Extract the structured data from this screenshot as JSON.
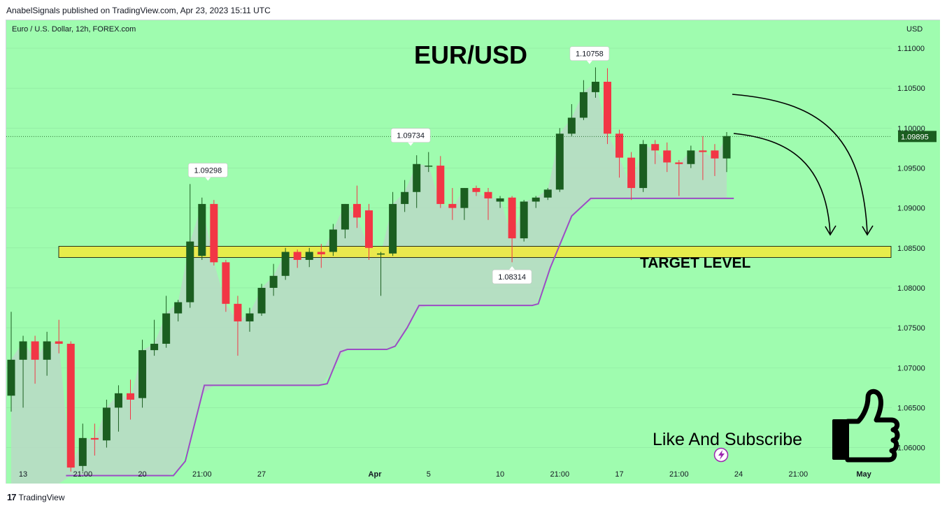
{
  "header": {
    "published": "AnabelSignals published on TradingView.com, Apr 23, 2023 15:11 UTC"
  },
  "footer": {
    "brand": "TradingView",
    "logo_glyph": "17"
  },
  "chart_header": {
    "symbol": "Euro / U.S. Dollar, 12h, FOREX.com",
    "currency": "USD"
  },
  "colors": {
    "background": "#9ffcaf",
    "up": "#1b5e20",
    "down": "#f23645",
    "trail": "#9c4dc4",
    "band": "#f3ea3a",
    "cloud": "#b9d9c6"
  },
  "annotations": {
    "title": "EUR/USD",
    "target_label": "TARGET LEVEL",
    "cta": "Like And Subscribe",
    "thumb_icon": "thumbs-up-icon",
    "flash_icon": "lightning-icon"
  },
  "chart_data": {
    "type": "candlestick",
    "interval": "12h",
    "ylim": [
      1.0555,
      1.1135
    ],
    "y_ticks": [
      "1.11000",
      "1.10500",
      "1.10000",
      "1.09500",
      "1.09000",
      "1.08500",
      "1.08000",
      "1.07500",
      "1.07000",
      "1.06500",
      "1.06000"
    ],
    "y_tick_values": [
      1.11,
      1.105,
      1.1,
      1.095,
      1.09,
      1.085,
      1.08,
      1.075,
      1.07,
      1.065,
      1.06
    ],
    "x_ticks": [
      "13",
      "21:00",
      "20",
      "21:00",
      "27",
      "Apr",
      "5",
      "10",
      "21:00",
      "17",
      "21:00",
      "24",
      "21:00",
      "May"
    ],
    "x_tick_bold": [
      "Apr",
      "May"
    ],
    "x_tick_index": [
      1,
      6,
      11,
      16,
      21,
      30.5,
      35,
      41,
      46,
      51,
      56,
      61,
      66,
      71.5
    ],
    "last_price": "1.09895",
    "last_price_value": 1.09895,
    "target_level": [
      1.0838,
      1.0852
    ],
    "price_labels": [
      {
        "text": "1.09298",
        "index": 16.5,
        "value": 1.09298
      },
      {
        "text": "1.09734",
        "index": 33.5,
        "value": 1.09734
      },
      {
        "text": "1.08314",
        "index": 42,
        "value": 1.08314
      },
      {
        "text": "1.10758",
        "index": 48.5,
        "value": 1.10758
      }
    ],
    "candles": [
      {
        "o": 1.0665,
        "h": 1.077,
        "l": 1.0645,
        "c": 1.071
      },
      {
        "o": 1.071,
        "h": 1.074,
        "l": 1.065,
        "c": 1.0733
      },
      {
        "o": 1.0733,
        "h": 1.074,
        "l": 1.068,
        "c": 1.071
      },
      {
        "o": 1.071,
        "h": 1.0745,
        "l": 1.069,
        "c": 1.0733
      },
      {
        "o": 1.0733,
        "h": 1.076,
        "l": 1.0718,
        "c": 1.073
      },
      {
        "o": 1.073,
        "h": 1.0733,
        "l": 1.057,
        "c": 1.0575
      },
      {
        "o": 1.0577,
        "h": 1.063,
        "l": 1.057,
        "c": 1.0612
      },
      {
        "o": 1.0612,
        "h": 1.063,
        "l": 1.059,
        "c": 1.061
      },
      {
        "o": 1.0609,
        "h": 1.066,
        "l": 1.06,
        "c": 1.065
      },
      {
        "o": 1.065,
        "h": 1.0678,
        "l": 1.062,
        "c": 1.0668
      },
      {
        "o": 1.0668,
        "h": 1.0685,
        "l": 1.0635,
        "c": 1.066
      },
      {
        "o": 1.0662,
        "h": 1.0735,
        "l": 1.065,
        "c": 1.0722
      },
      {
        "o": 1.0722,
        "h": 1.076,
        "l": 1.0715,
        "c": 1.073
      },
      {
        "o": 1.073,
        "h": 1.079,
        "l": 1.0725,
        "c": 1.0768
      },
      {
        "o": 1.0768,
        "h": 1.0785,
        "l": 1.0758,
        "c": 1.0782
      },
      {
        "o": 1.0782,
        "h": 1.093,
        "l": 1.0775,
        "c": 1.0858
      },
      {
        "o": 1.084,
        "h": 1.0913,
        "l": 1.0835,
        "c": 1.0905
      },
      {
        "o": 1.0905,
        "h": 1.091,
        "l": 1.0828,
        "c": 1.0832
      },
      {
        "o": 1.0832,
        "h": 1.0835,
        "l": 1.077,
        "c": 1.078
      },
      {
        "o": 1.078,
        "h": 1.079,
        "l": 1.0715,
        "c": 1.0758
      },
      {
        "o": 1.0758,
        "h": 1.0775,
        "l": 1.0745,
        "c": 1.0768
      },
      {
        "o": 1.0768,
        "h": 1.0805,
        "l": 1.0765,
        "c": 1.08
      },
      {
        "o": 1.08,
        "h": 1.083,
        "l": 1.079,
        "c": 1.0815
      },
      {
        "o": 1.0815,
        "h": 1.085,
        "l": 1.081,
        "c": 1.0845
      },
      {
        "o": 1.0845,
        "h": 1.0848,
        "l": 1.0825,
        "c": 1.0835
      },
      {
        "o": 1.0835,
        "h": 1.085,
        "l": 1.0826,
        "c": 1.0845
      },
      {
        "o": 1.0845,
        "h": 1.0855,
        "l": 1.0825,
        "c": 1.0842
      },
      {
        "o": 1.0845,
        "h": 1.088,
        "l": 1.084,
        "c": 1.0873
      },
      {
        "o": 1.0873,
        "h": 1.0905,
        "l": 1.0862,
        "c": 1.0905
      },
      {
        "o": 1.0905,
        "h": 1.0928,
        "l": 1.0875,
        "c": 1.0888
      },
      {
        "o": 1.0897,
        "h": 1.0905,
        "l": 1.0835,
        "c": 1.085
      },
      {
        "o": 1.0843,
        "h": 1.0845,
        "l": 1.079,
        "c": 1.0843
      },
      {
        "o": 1.0843,
        "h": 1.092,
        "l": 1.084,
        "c": 1.0905
      },
      {
        "o": 1.0905,
        "h": 1.0935,
        "l": 1.0895,
        "c": 1.092
      },
      {
        "o": 1.092,
        "h": 1.0966,
        "l": 1.09,
        "c": 1.0955
      },
      {
        "o": 1.0953,
        "h": 1.097,
        "l": 1.0945,
        "c": 1.0953
      },
      {
        "o": 1.0953,
        "h": 1.0965,
        "l": 1.09,
        "c": 1.0905
      },
      {
        "o": 1.0905,
        "h": 1.0925,
        "l": 1.0885,
        "c": 1.09
      },
      {
        "o": 1.09,
        "h": 1.0925,
        "l": 1.0885,
        "c": 1.0925
      },
      {
        "o": 1.0925,
        "h": 1.0928,
        "l": 1.0915,
        "c": 1.092
      },
      {
        "o": 1.092,
        "h": 1.0925,
        "l": 1.0885,
        "c": 1.0912
      },
      {
        "o": 1.0908,
        "h": 1.0915,
        "l": 1.09,
        "c": 1.0912
      },
      {
        "o": 1.0913,
        "h": 1.0915,
        "l": 1.0832,
        "c": 1.0862
      },
      {
        "o": 1.0862,
        "h": 1.091,
        "l": 1.0858,
        "c": 1.0908
      },
      {
        "o": 1.0908,
        "h": 1.0915,
        "l": 1.09,
        "c": 1.0913
      },
      {
        "o": 1.0913,
        "h": 1.0925,
        "l": 1.091,
        "c": 1.0923
      },
      {
        "o": 1.0923,
        "h": 1.1,
        "l": 1.092,
        "c": 1.0993
      },
      {
        "o": 1.0993,
        "h": 1.103,
        "l": 1.099,
        "c": 1.1013
      },
      {
        "o": 1.1013,
        "h": 1.106,
        "l": 1.101,
        "c": 1.1045
      },
      {
        "o": 1.1045,
        "h": 1.1076,
        "l": 1.1038,
        "c": 1.1058
      },
      {
        "o": 1.1058,
        "h": 1.1075,
        "l": 1.098,
        "c": 1.0993
      },
      {
        "o": 1.0993,
        "h": 1.0998,
        "l": 1.0938,
        "c": 1.0963
      },
      {
        "o": 1.0963,
        "h": 1.097,
        "l": 1.091,
        "c": 1.0925
      },
      {
        "o": 1.0925,
        "h": 1.0985,
        "l": 1.092,
        "c": 1.098
      },
      {
        "o": 1.098,
        "h": 1.0985,
        "l": 1.0955,
        "c": 1.0972
      },
      {
        "o": 1.0972,
        "h": 1.0982,
        "l": 1.0945,
        "c": 1.0957
      },
      {
        "o": 1.0957,
        "h": 1.096,
        "l": 1.0915,
        "c": 1.0955
      },
      {
        "o": 1.0955,
        "h": 1.0978,
        "l": 1.095,
        "c": 1.0972
      },
      {
        "o": 1.0972,
        "h": 1.099,
        "l": 1.0935,
        "c": 1.097
      },
      {
        "o": 1.0972,
        "h": 1.098,
        "l": 1.094,
        "c": 1.0962
      },
      {
        "o": 1.0962,
        "h": 1.0995,
        "l": 1.0945,
        "c": 1.099
      }
    ],
    "trail_stop": [
      [
        4.6,
        1.0565
      ],
      [
        13.6,
        1.0565
      ],
      [
        14.6,
        1.0583
      ],
      [
        16.2,
        1.0678
      ],
      [
        25.8,
        1.0678
      ],
      [
        26.5,
        1.068
      ],
      [
        27.6,
        1.072
      ],
      [
        28.2,
        1.0723
      ],
      [
        31.5,
        1.0723
      ],
      [
        32.2,
        1.0727
      ],
      [
        33.2,
        1.075
      ],
      [
        34.2,
        1.0778
      ],
      [
        43.7,
        1.0778
      ],
      [
        44.2,
        1.078
      ],
      [
        45.2,
        1.0825
      ],
      [
        47.0,
        1.089
      ],
      [
        48.6,
        1.0912
      ],
      [
        60.6,
        1.0912
      ]
    ]
  }
}
